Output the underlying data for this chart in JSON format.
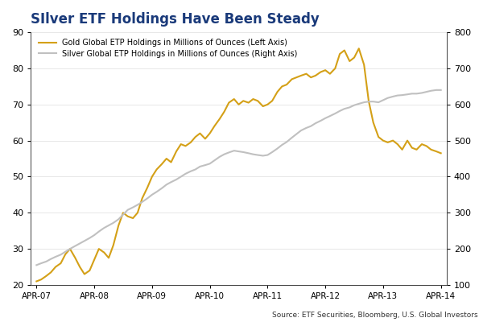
{
  "title": "SIlver ETF Holdings Have Been Steady",
  "title_color": "#1a3a7a",
  "title_fontsize": 12,
  "legend_gold": "Gold Global ETP Holdings in Millions of Ounces (Left Axis)",
  "legend_silver": "Silver Global ETP Holdings in Millions of Ounces (Right Axis)",
  "gold_color": "#d4a017",
  "silver_color": "#c0c0c0",
  "source_text": "Source: ETF Securities, Bloomberg, U.S. Global Investors",
  "ylim_left": [
    20,
    90
  ],
  "ylim_right": [
    100,
    800
  ],
  "yticks_left": [
    20,
    30,
    40,
    50,
    60,
    70,
    80,
    90
  ],
  "yticks_right": [
    100,
    200,
    300,
    400,
    500,
    600,
    700,
    800
  ],
  "xtick_labels": [
    "APR-07",
    "APR-08",
    "APR-09",
    "APR-10",
    "APR-11",
    "APR-12",
    "APR-13",
    "APR-14"
  ],
  "gold_data_x": [
    0.0,
    0.08,
    0.17,
    0.25,
    0.33,
    0.42,
    0.5,
    0.58,
    0.67,
    0.75,
    0.83,
    0.92,
    1.0,
    1.08,
    1.17,
    1.25,
    1.33,
    1.42,
    1.5,
    1.58,
    1.67,
    1.75,
    1.83,
    1.92,
    2.0,
    2.08,
    2.17,
    2.25,
    2.33,
    2.42,
    2.5,
    2.58,
    2.67,
    2.75,
    2.83,
    2.92,
    3.0,
    3.08,
    3.17,
    3.25,
    3.33,
    3.42,
    3.5,
    3.58,
    3.67,
    3.75,
    3.83,
    3.92,
    4.0,
    4.08,
    4.17,
    4.25,
    4.33,
    4.42,
    4.5,
    4.58,
    4.67,
    4.75,
    4.83,
    4.92,
    5.0,
    5.08,
    5.17,
    5.25,
    5.33,
    5.42,
    5.5,
    5.58,
    5.67,
    5.75,
    5.83,
    5.92,
    6.0,
    6.08,
    6.17,
    6.25,
    6.33,
    6.42,
    6.5,
    6.58,
    6.67,
    6.75,
    6.83,
    6.92,
    7.0
  ],
  "gold_data_y": [
    21.0,
    21.5,
    22.5,
    23.5,
    25.0,
    26.0,
    28.5,
    30.0,
    27.5,
    25.0,
    23.0,
    24.0,
    27.0,
    30.0,
    29.0,
    27.5,
    31.0,
    36.5,
    40.0,
    39.0,
    38.5,
    40.0,
    44.0,
    47.0,
    50.0,
    52.0,
    53.5,
    55.0,
    54.0,
    57.0,
    59.0,
    58.5,
    59.5,
    61.0,
    62.0,
    60.5,
    62.0,
    64.0,
    66.0,
    68.0,
    70.5,
    71.5,
    70.0,
    71.0,
    70.5,
    71.5,
    71.0,
    69.5,
    70.0,
    71.0,
    73.5,
    75.0,
    75.5,
    77.0,
    77.5,
    78.0,
    78.5,
    77.5,
    78.0,
    79.0,
    79.5,
    78.5,
    80.0,
    84.0,
    85.0,
    82.0,
    83.0,
    85.5,
    81.0,
    71.0,
    65.0,
    61.0,
    60.0,
    59.5,
    60.0,
    59.0,
    57.5,
    60.0,
    58.0,
    57.5,
    59.0,
    58.5,
    57.5,
    57.0,
    56.5
  ],
  "silver_data_x": [
    0.0,
    0.08,
    0.17,
    0.25,
    0.33,
    0.42,
    0.5,
    0.58,
    0.67,
    0.75,
    0.83,
    0.92,
    1.0,
    1.08,
    1.17,
    1.25,
    1.33,
    1.42,
    1.5,
    1.58,
    1.67,
    1.75,
    1.83,
    1.92,
    2.0,
    2.08,
    2.17,
    2.25,
    2.33,
    2.42,
    2.5,
    2.58,
    2.67,
    2.75,
    2.83,
    2.92,
    3.0,
    3.08,
    3.17,
    3.25,
    3.33,
    3.42,
    3.5,
    3.58,
    3.67,
    3.75,
    3.83,
    3.92,
    4.0,
    4.08,
    4.17,
    4.25,
    4.33,
    4.42,
    4.5,
    4.58,
    4.67,
    4.75,
    4.83,
    4.92,
    5.0,
    5.08,
    5.17,
    5.25,
    5.33,
    5.42,
    5.5,
    5.58,
    5.67,
    5.75,
    5.83,
    5.92,
    6.0,
    6.08,
    6.17,
    6.25,
    6.33,
    6.42,
    6.5,
    6.58,
    6.67,
    6.75,
    6.83,
    6.92,
    7.0
  ],
  "silver_data_y": [
    155,
    160,
    165,
    172,
    178,
    184,
    192,
    200,
    208,
    215,
    222,
    230,
    238,
    248,
    258,
    265,
    272,
    282,
    295,
    308,
    315,
    322,
    330,
    340,
    350,
    358,
    368,
    378,
    385,
    392,
    400,
    408,
    415,
    420,
    428,
    432,
    436,
    445,
    455,
    462,
    467,
    472,
    470,
    468,
    465,
    462,
    460,
    458,
    460,
    468,
    478,
    488,
    496,
    508,
    518,
    528,
    535,
    540,
    548,
    555,
    562,
    568,
    575,
    582,
    588,
    592,
    598,
    602,
    606,
    608,
    608,
    606,
    612,
    618,
    622,
    625,
    626,
    628,
    630,
    630,
    632,
    635,
    638,
    640,
    640
  ]
}
